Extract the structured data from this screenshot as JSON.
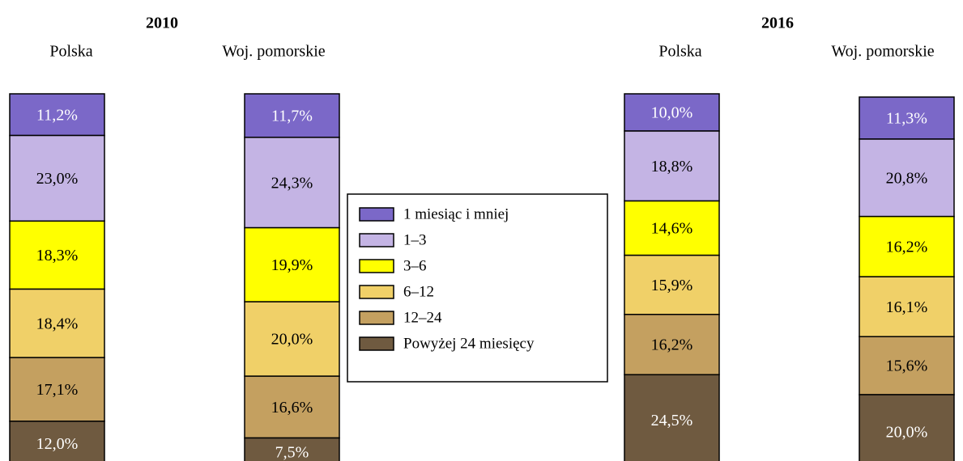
{
  "chart_data": {
    "type": "stacked_bar",
    "group_labels": [
      "2010",
      "2016"
    ],
    "categories": [
      "Polska",
      "Woj. pomorskie",
      "Polska",
      "Woj. pomorskie"
    ],
    "series": [
      {
        "name": "1 miesiąc i mniej",
        "color": "#7b68c8",
        "values": [
          11.2,
          11.7,
          10.0,
          11.3
        ],
        "value_labels": [
          "11,2%",
          "11,7%",
          "10,0%",
          "11,3%"
        ]
      },
      {
        "name": "1–3",
        "color": "#c4b4e4",
        "values": [
          23.0,
          24.3,
          18.8,
          20.8
        ],
        "value_labels": [
          "23,0%",
          "24,3%",
          "18,8%",
          "20,8%"
        ]
      },
      {
        "name": "3–6",
        "color": "#ffff00",
        "values": [
          18.3,
          19.9,
          14.6,
          16.2
        ],
        "value_labels": [
          "18,3%",
          "19,9%",
          "14,6%",
          "16,2%"
        ]
      },
      {
        "name": "6–12",
        "color": "#f0d068",
        "values": [
          18.4,
          20.0,
          15.9,
          16.1
        ],
        "value_labels": [
          "18,4%",
          "20,0%",
          "15,9%",
          "16,1%"
        ]
      },
      {
        "name": "12–24",
        "color": "#c4a060",
        "values": [
          17.1,
          16.6,
          16.2,
          15.6
        ],
        "value_labels": [
          "17,1%",
          "16,6%",
          "16,2%",
          "15,6%"
        ]
      },
      {
        "name": "Powyżej 24 miesięcy",
        "color": "#6f5a40",
        "values": [
          12.0,
          7.5,
          24.5,
          20.0
        ],
        "value_labels": [
          "12,0%",
          "7,5%",
          "24,5%",
          "20,0%"
        ]
      }
    ]
  }
}
